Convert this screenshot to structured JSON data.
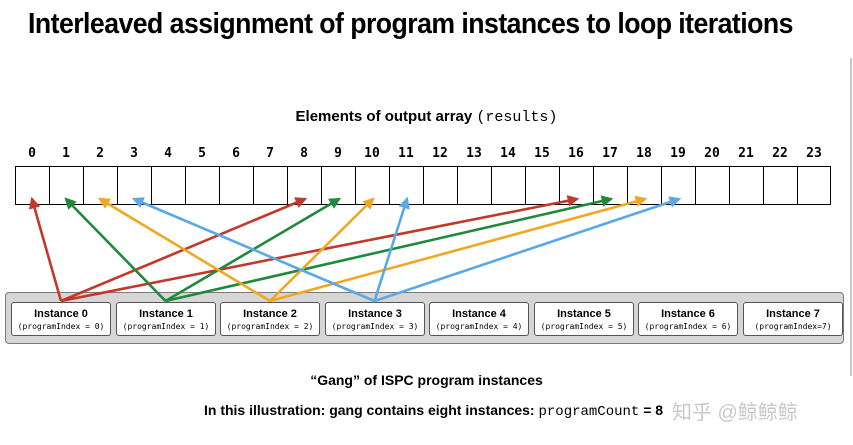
{
  "title": "Interleaved assignment of program instances to loop iterations",
  "array": {
    "label": "Elements of output array",
    "var": "(results)",
    "indices": [
      "0",
      "1",
      "2",
      "3",
      "4",
      "5",
      "6",
      "7",
      "8",
      "9",
      "10",
      "11",
      "12",
      "13",
      "14",
      "15",
      "16",
      "17",
      "18",
      "19",
      "20",
      "21",
      "22",
      "23"
    ]
  },
  "instances": [
    {
      "name": "Instance 0",
      "index_label": "(programIndex = 0)",
      "color": "#c0392b",
      "targets": [
        0,
        8,
        16
      ]
    },
    {
      "name": "Instance 1",
      "index_label": "(programIndex = 1)",
      "color": "#1f8a3a",
      "targets": [
        1,
        9,
        17
      ]
    },
    {
      "name": "Instance 2",
      "index_label": "(programIndex = 2)",
      "color": "#f0a822",
      "targets": [
        2,
        10,
        18
      ]
    },
    {
      "name": "Instance 3",
      "index_label": "(programIndex = 3)",
      "color": "#5aa8e6",
      "targets": [
        3,
        11,
        19
      ]
    },
    {
      "name": "Instance 4",
      "index_label": "(programIndex = 4)"
    },
    {
      "name": "Instance 5",
      "index_label": "(programIndex = 5)"
    },
    {
      "name": "Instance 6",
      "index_label": "(programIndex = 6)"
    },
    {
      "name": "Instance 7",
      "index_label": "(programIndex=7)"
    }
  ],
  "caption": {
    "gang": "“Gang” of ISPC program instances",
    "detail_text": "In this illustration: gang contains eight instances:",
    "detail_code": "programCount",
    "detail_eq": " = 8"
  },
  "watermark": "知乎 @鲸鲸鲸"
}
